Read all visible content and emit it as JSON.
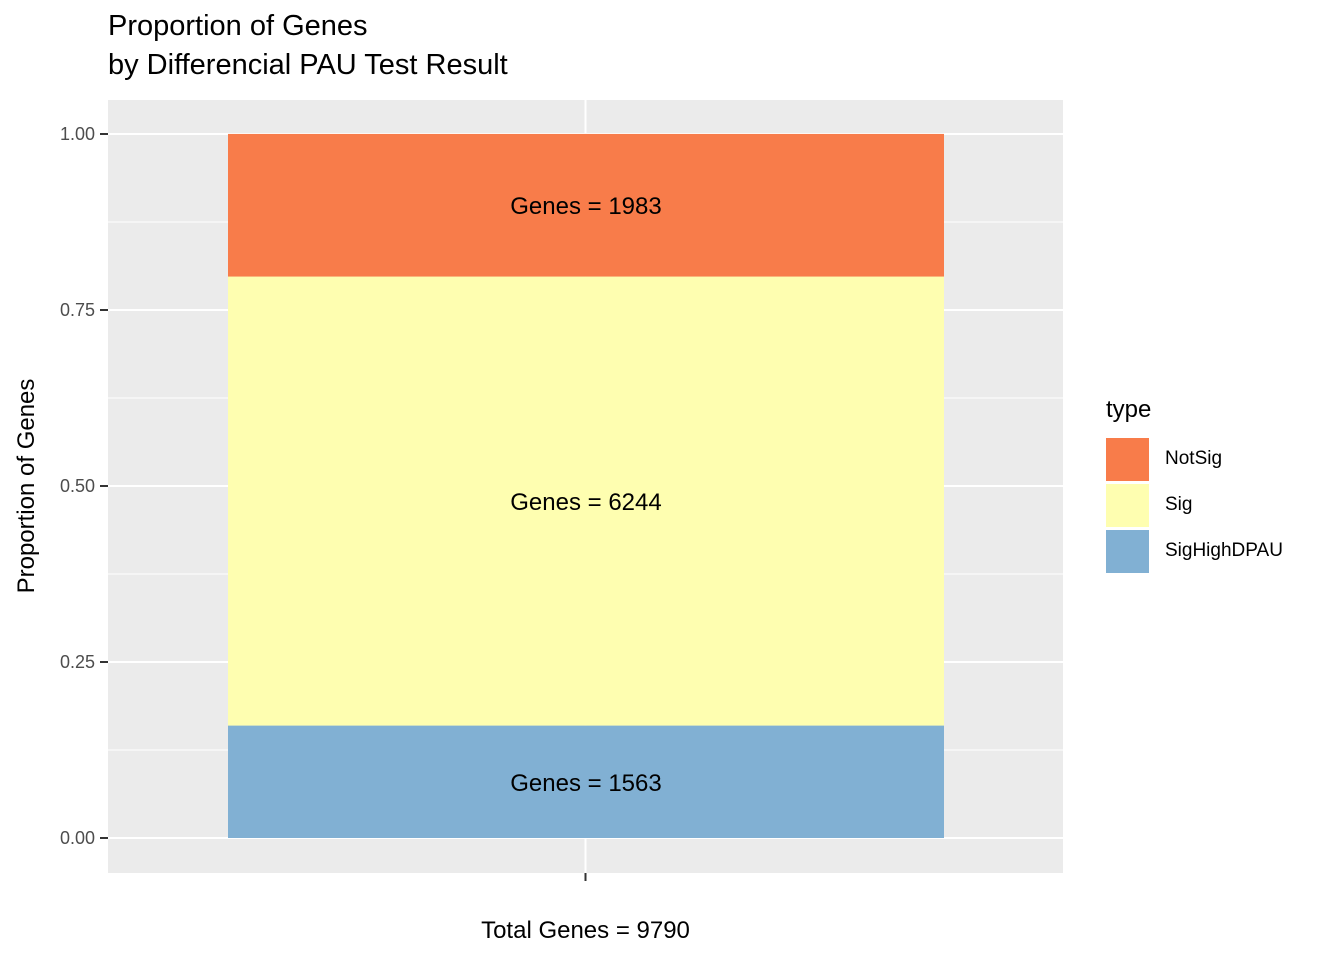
{
  "title_line1": "Proportion of Genes",
  "title_line2": "by Differencial PAU Test Result",
  "chart_data": {
    "type": "bar",
    "stacked": true,
    "title": "Proportion of Genes\nby Differencial PAU Test Result",
    "xlabel": "Total Genes = 9790",
    "ylabel": "Proportion of Genes",
    "ylim": [
      0,
      1
    ],
    "yticks": [
      "0.00",
      "0.25",
      "0.50",
      "0.75",
      "1.00"
    ],
    "ytick_values": [
      0,
      0.25,
      0.5,
      0.75,
      1.0
    ],
    "grid": true,
    "legend_title": "type",
    "legend_position": "right",
    "series": [
      {
        "name": "NotSig",
        "count": 1983,
        "proportion": 0.2026,
        "label": "Genes = 1983",
        "color": "#F87C4A"
      },
      {
        "name": "Sig",
        "count": 6244,
        "proportion": 0.6378,
        "label": "Genes = 6244",
        "color": "#FEFEB0"
      },
      {
        "name": "SigHighDPAU",
        "count": 1563,
        "proportion": 0.1597,
        "label": "Genes = 1563",
        "color": "#81B0D3"
      }
    ]
  }
}
